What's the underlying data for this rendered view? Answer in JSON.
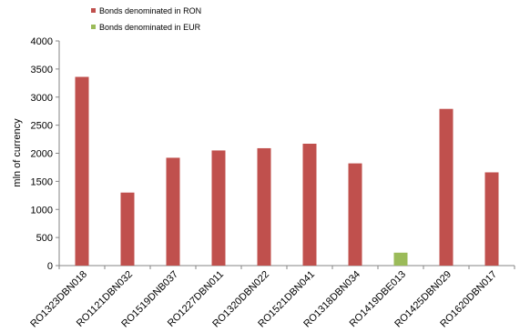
{
  "chart_data": {
    "type": "bar",
    "title": "",
    "xlabel": "",
    "ylabel": "mln of currency",
    "ylim": [
      0,
      4000
    ],
    "yticks": [
      0,
      500,
      1000,
      1500,
      2000,
      2500,
      3000,
      3500,
      4000
    ],
    "grid": false,
    "legend_position": "top",
    "categories": [
      "RO1323DBN018",
      "RO1121DBN032",
      "RO1519DNB037",
      "RO1227DBN011",
      "RO1320DBN022",
      "RO1521DBN041",
      "RO1318DBN034",
      "RO1419DBE013",
      "RO1425DBN029",
      "RO1620DBN017"
    ],
    "series": [
      {
        "name": "Bonds denominated in RON",
        "color": "#c0504d",
        "values": [
          3360,
          1300,
          1920,
          2050,
          2090,
          2170,
          1820,
          null,
          2790,
          1660
        ]
      },
      {
        "name": "Bonds denominated in EUR",
        "color": "#9bbb59",
        "values": [
          null,
          null,
          null,
          null,
          null,
          null,
          null,
          230,
          null,
          null
        ]
      }
    ]
  }
}
